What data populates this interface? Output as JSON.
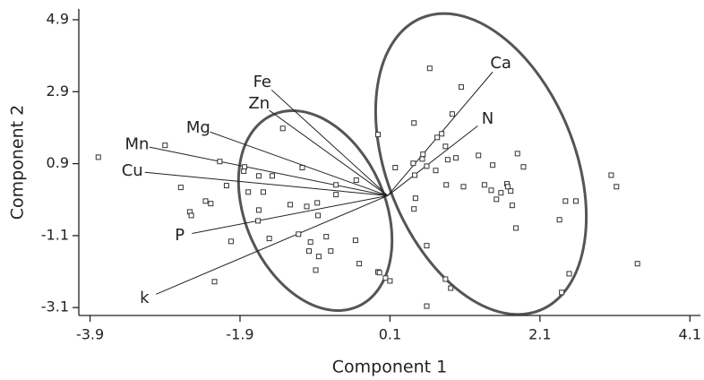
{
  "chart_data": {
    "type": "scatter",
    "x_label": "Component 1",
    "y_label": "Component 2",
    "xlim": [
      -4.05,
      4.24
    ],
    "ylim": [
      -3.32,
      5.2
    ],
    "xticks": [
      -3.9,
      -1.9,
      0.1,
      2.1,
      4.1
    ],
    "yticks": [
      -3.1,
      -1.1,
      0.9,
      2.9,
      4.9
    ],
    "color": "#333333",
    "x": [
      -3.79,
      -2.9,
      -2.69,
      -2.17,
      -2.57,
      -2.36,
      -2.29,
      -2.55,
      -2.08,
      -2.02,
      -2.24,
      -1.84,
      -1.85,
      -1.65,
      -1.47,
      -1.59,
      -1.79,
      -1.65,
      -1.66,
      -1.51,
      -1.33,
      -1.07,
      -1.23,
      -1.01,
      -0.87,
      -0.86,
      -1.12,
      -0.96,
      -0.75,
      -0.98,
      -0.69,
      -0.89,
      -0.85,
      -0.62,
      -0.62,
      -0.36,
      -0.31,
      -0.35,
      -0.06,
      -0.04,
      0.04,
      0.1,
      -0.06,
      0.17,
      0.41,
      0.63,
      0.42,
      0.54,
      0.53,
      0.59,
      0.59,
      0.44,
      0.42,
      0.43,
      0.73,
      0.79,
      0.84,
      0.71,
      0.87,
      0.93,
      1.05,
      0.85,
      1.08,
      0.98,
      0.84,
      0.91,
      0.59,
      1.28,
      1.47,
      1.36,
      1.45,
      1.58,
      1.66,
      1.67,
      1.71,
      1.8,
      1.88,
      1.52,
      1.73,
      1.78,
      2.44,
      2.58,
      2.36,
      2.49,
      2.39,
      3.05,
      3.12,
      3.4
    ],
    "y": [
      1.08,
      1.41,
      0.24,
      0.96,
      -0.44,
      -0.14,
      -0.21,
      -0.54,
      0.29,
      -1.26,
      -2.38,
      0.81,
      0.69,
      0.56,
      0.56,
      0.11,
      0.11,
      -0.39,
      -0.69,
      -1.18,
      1.88,
      0.79,
      -0.24,
      -0.29,
      -0.19,
      -0.54,
      -1.06,
      -1.28,
      -1.13,
      -1.53,
      -1.53,
      -2.06,
      -1.68,
      0.31,
      0.04,
      -1.23,
      -1.88,
      0.44,
      -2.11,
      -2.13,
      -2.28,
      -2.36,
      1.71,
      0.79,
      0.91,
      3.55,
      2.03,
      1.16,
      1.03,
      0.83,
      -1.38,
      -0.06,
      -0.36,
      0.58,
      1.63,
      1.73,
      1.38,
      0.71,
      1.01,
      2.28,
      3.03,
      0.31,
      0.26,
      1.06,
      -2.31,
      -2.56,
      -3.06,
      1.13,
      0.86,
      0.31,
      0.16,
      0.09,
      0.34,
      0.26,
      0.14,
      1.18,
      0.81,
      -0.09,
      -0.26,
      -0.89,
      -0.14,
      -0.14,
      -0.66,
      -2.16,
      -2.68,
      0.58,
      0.26,
      -1.88
    ],
    "origin": [
      0.07,
      0.01
    ],
    "vectors": [
      {
        "name": "Ca",
        "x": 1.47,
        "y": 3.45
      },
      {
        "name": "N",
        "x": 1.27,
        "y": 1.95
      },
      {
        "name": "Fe",
        "x": -1.48,
        "y": 2.95
      },
      {
        "name": "Zn",
        "x": -1.51,
        "y": 2.38
      },
      {
        "name": "Mg",
        "x": -2.3,
        "y": 1.78
      },
      {
        "name": "Mn",
        "x": -3.11,
        "y": 1.36
      },
      {
        "name": "Cu",
        "x": -3.17,
        "y": 0.66
      },
      {
        "name": "P",
        "x": -2.54,
        "y": -1.04
      },
      {
        "name": "k",
        "x": -3.02,
        "y": -2.73
      }
    ]
  }
}
